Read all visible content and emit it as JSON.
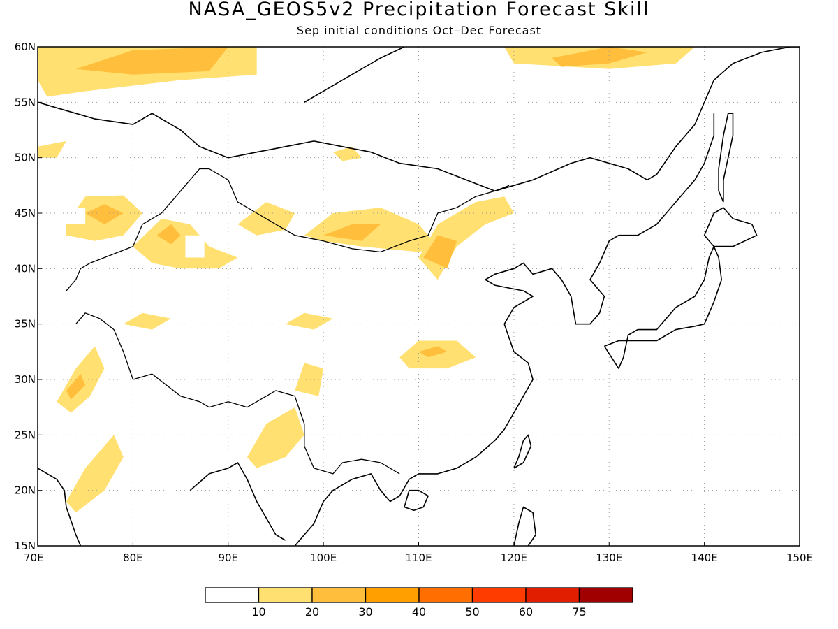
{
  "title": "NASA_GEOS5v2 Precipitation Forecast Skill",
  "subtitle": "Sep initial conditions  Oct–Dec Forecast",
  "map": {
    "lon_range": [
      70,
      150
    ],
    "lat_range": [
      15,
      60
    ],
    "lat_ticks": [
      {
        "value": 60,
        "label": "60N"
      },
      {
        "value": 55,
        "label": "55N"
      },
      {
        "value": 50,
        "label": "50N"
      },
      {
        "value": 45,
        "label": "45N"
      },
      {
        "value": 40,
        "label": "40N"
      },
      {
        "value": 35,
        "label": "35N"
      },
      {
        "value": 30,
        "label": "30N"
      },
      {
        "value": 25,
        "label": "25N"
      },
      {
        "value": 20,
        "label": "20N"
      },
      {
        "value": 15,
        "label": "15N"
      }
    ],
    "lon_ticks": [
      {
        "value": 70,
        "label": "70E"
      },
      {
        "value": 80,
        "label": "80E"
      },
      {
        "value": 90,
        "label": "90E"
      },
      {
        "value": 100,
        "label": "100E"
      },
      {
        "value": 110,
        "label": "110E"
      },
      {
        "value": 120,
        "label": "120E"
      },
      {
        "value": 130,
        "label": "130E"
      },
      {
        "value": 140,
        "label": "140E"
      },
      {
        "value": 150,
        "label": "150E"
      }
    ],
    "grid": "dotted",
    "coastline_color": "#000000"
  },
  "colorbar": {
    "colors": [
      "#ffffff",
      "#ffe070",
      "#ffbe3c",
      "#ffa000",
      "#ff6e00",
      "#ff3c00",
      "#e11e00",
      "#a00000"
    ],
    "tick_labels": [
      "10",
      "20",
      "30",
      "40",
      "50",
      "60",
      "75"
    ]
  },
  "skill_regions": [
    {
      "name": "siberia-west",
      "level": 1,
      "pts": [
        [
          70,
          60
        ],
        [
          93,
          60
        ],
        [
          93,
          57.5
        ],
        [
          85,
          57
        ],
        [
          75,
          56
        ],
        [
          71,
          55.5
        ],
        [
          70,
          57
        ]
      ]
    },
    {
      "name": "siberia-west-core",
      "level": 2,
      "pts": [
        [
          74,
          58
        ],
        [
          80,
          59.7
        ],
        [
          90,
          60
        ],
        [
          88,
          57.8
        ],
        [
          80,
          57.5
        ]
      ]
    },
    {
      "name": "east-siberia",
      "level": 1,
      "pts": [
        [
          119,
          60
        ],
        [
          139,
          60
        ],
        [
          137,
          58.5
        ],
        [
          130,
          58
        ],
        [
          120,
          58.5
        ]
      ]
    },
    {
      "name": "east-siberia-core",
      "level": 2,
      "pts": [
        [
          124,
          59
        ],
        [
          130,
          60
        ],
        [
          134,
          59.5
        ],
        [
          130,
          58.5
        ],
        [
          125,
          58.2
        ]
      ]
    },
    {
      "name": "kazakh-north",
      "level": 1,
      "pts": [
        [
          70,
          51
        ],
        [
          73,
          51.5
        ],
        [
          72,
          50
        ],
        [
          70,
          50
        ]
      ]
    },
    {
      "name": "kazakh-central",
      "level": 1,
      "pts": [
        [
          73,
          44
        ],
        [
          75,
          46.5
        ],
        [
          79,
          46.6
        ],
        [
          81,
          45
        ],
        [
          79,
          43
        ],
        [
          76,
          42.5
        ],
        [
          73,
          43
        ]
      ]
    },
    {
      "name": "kazakh-central-core",
      "level": 2,
      "pts": [
        [
          75,
          45
        ],
        [
          77,
          45.8
        ],
        [
          79,
          45
        ],
        [
          77,
          44
        ]
      ]
    },
    {
      "name": "tianshan",
      "level": 1,
      "pts": [
        [
          80,
          42
        ],
        [
          83,
          44.5
        ],
        [
          86,
          44
        ],
        [
          88,
          42
        ],
        [
          91,
          41
        ],
        [
          89,
          40
        ],
        [
          85,
          40
        ],
        [
          82,
          40.5
        ]
      ]
    },
    {
      "name": "tianshan-core",
      "level": 2,
      "pts": [
        [
          82.5,
          43
        ],
        [
          84,
          44
        ],
        [
          85,
          43
        ],
        [
          84,
          42.2
        ]
      ]
    },
    {
      "name": "west-india",
      "level": 1,
      "pts": [
        [
          72,
          28
        ],
        [
          74,
          31
        ],
        [
          76,
          33
        ],
        [
          77,
          31
        ],
        [
          75.5,
          28.5
        ],
        [
          73.5,
          27
        ]
      ]
    },
    {
      "name": "west-india-core",
      "level": 2,
      "pts": [
        [
          73,
          29
        ],
        [
          74.5,
          30.5
        ],
        [
          75,
          29.5
        ],
        [
          73.5,
          28.2
        ]
      ]
    },
    {
      "name": "central-india",
      "level": 1,
      "pts": [
        [
          73,
          19
        ],
        [
          75,
          22
        ],
        [
          78,
          25
        ],
        [
          79,
          23
        ],
        [
          77,
          20
        ],
        [
          74,
          18
        ]
      ]
    },
    {
      "name": "bengal",
      "level": 1,
      "pts": [
        [
          92,
          23
        ],
        [
          94,
          26
        ],
        [
          97,
          27.5
        ],
        [
          98,
          25
        ],
        [
          96,
          23
        ],
        [
          93,
          22
        ]
      ]
    },
    {
      "name": "mongolia-west",
      "level": 1,
      "pts": [
        [
          91,
          44
        ],
        [
          94,
          46
        ],
        [
          97,
          45
        ],
        [
          96,
          43.5
        ],
        [
          93,
          43
        ]
      ]
    },
    {
      "name": "mongolia-central",
      "level": 1,
      "pts": [
        [
          98,
          43
        ],
        [
          101,
          45
        ],
        [
          106,
          45.5
        ],
        [
          110,
          44
        ],
        [
          112,
          42
        ],
        [
          110,
          41.5
        ],
        [
          104,
          42
        ],
        [
          100,
          42.5
        ]
      ]
    },
    {
      "name": "mongolia-central-core",
      "level": 2,
      "pts": [
        [
          100,
          43
        ],
        [
          103,
          44
        ],
        [
          106,
          44
        ],
        [
          104,
          42.5
        ]
      ]
    },
    {
      "name": "inner-mongolia",
      "level": 1,
      "pts": [
        [
          110,
          41
        ],
        [
          112,
          44
        ],
        [
          116,
          46
        ],
        [
          119,
          46.5
        ],
        [
          120,
          45
        ],
        [
          117,
          44
        ],
        [
          114,
          42
        ],
        [
          112,
          39
        ]
      ]
    },
    {
      "name": "inner-mongolia-core",
      "level": 2,
      "pts": [
        [
          110.5,
          41
        ],
        [
          112,
          43
        ],
        [
          114,
          42.5
        ],
        [
          113,
          40
        ]
      ]
    },
    {
      "name": "north-mongolia",
      "level": 1,
      "pts": [
        [
          101,
          50.5
        ],
        [
          103,
          51
        ],
        [
          104,
          50
        ],
        [
          102,
          49.7
        ]
      ]
    },
    {
      "name": "sichuan",
      "level": 1,
      "pts": [
        [
          108,
          32
        ],
        [
          110,
          33.5
        ],
        [
          114,
          33.5
        ],
        [
          116,
          32
        ],
        [
          113,
          31
        ],
        [
          109,
          31
        ]
      ]
    },
    {
      "name": "sichuan-core",
      "level": 2,
      "pts": [
        [
          110,
          32.5
        ],
        [
          112,
          33
        ],
        [
          113,
          32.5
        ],
        [
          111,
          32
        ]
      ]
    },
    {
      "name": "tibet-east",
      "level": 1,
      "pts": [
        [
          97,
          29
        ],
        [
          98,
          31.5
        ],
        [
          100,
          31
        ],
        [
          99.5,
          28.5
        ]
      ]
    },
    {
      "name": "qinghai",
      "level": 1,
      "pts": [
        [
          96,
          35
        ],
        [
          98,
          36
        ],
        [
          101,
          35.5
        ],
        [
          99,
          34.5
        ]
      ]
    },
    {
      "name": "west-tibet",
      "level": 1,
      "pts": [
        [
          79,
          35
        ],
        [
          81,
          36
        ],
        [
          84,
          35.5
        ],
        [
          82,
          34.5
        ]
      ]
    }
  ],
  "masked_regions": [
    {
      "name": "white-box-1",
      "lon": [
        73,
        75
      ],
      "lat": [
        44,
        45.5
      ]
    },
    {
      "name": "white-box-2",
      "lon": [
        85.5,
        87.5
      ],
      "lat": [
        41,
        43
      ]
    }
  ],
  "coastlines": [
    [
      [
        70,
        55
      ],
      [
        72,
        54.5
      ],
      [
        74,
        54
      ],
      [
        76,
        53.5
      ],
      [
        80,
        53
      ],
      [
        82,
        54
      ],
      [
        85,
        52.5
      ],
      [
        87,
        51
      ],
      [
        90,
        50
      ],
      [
        93,
        50.5
      ],
      [
        96,
        51
      ],
      [
        99,
        51.5
      ],
      [
        102,
        51
      ],
      [
        105,
        50.5
      ],
      [
        108,
        49.5
      ],
      [
        112,
        49
      ],
      [
        115,
        48
      ],
      [
        118,
        47
      ],
      [
        120,
        47.5
      ],
      [
        122,
        48
      ],
      [
        126,
        49.5
      ],
      [
        128,
        50
      ],
      [
        132,
        49
      ],
      [
        134,
        48
      ],
      [
        135,
        48.5
      ],
      [
        137,
        51
      ],
      [
        139,
        53
      ],
      [
        140,
        55
      ],
      [
        141,
        57
      ],
      [
        143,
        58.5
      ],
      [
        146,
        59.5
      ],
      [
        149,
        60
      ],
      [
        150,
        60
      ]
    ],
    [
      [
        70,
        22
      ],
      [
        72,
        21
      ],
      [
        72.8,
        20
      ],
      [
        73,
        18.5
      ],
      [
        74,
        16
      ],
      [
        74.5,
        15
      ]
    ],
    [
      [
        86,
        20
      ],
      [
        88,
        21.5
      ],
      [
        90,
        22
      ],
      [
        91,
        22.5
      ],
      [
        92,
        21
      ],
      [
        93,
        19
      ],
      [
        94,
        17.5
      ],
      [
        95,
        16
      ],
      [
        96,
        15.5
      ]
    ],
    [
      [
        97,
        15
      ],
      [
        98,
        16
      ],
      [
        99,
        17
      ],
      [
        100,
        19
      ],
      [
        101,
        20
      ],
      [
        103,
        21
      ],
      [
        105,
        21.5
      ],
      [
        106,
        20
      ],
      [
        107,
        19
      ],
      [
        108,
        19.5
      ],
      [
        109,
        21
      ],
      [
        110,
        21.5
      ],
      [
        112,
        21.5
      ],
      [
        114,
        22
      ],
      [
        116,
        23
      ],
      [
        118,
        24.5
      ],
      [
        119,
        25.5
      ],
      [
        120,
        27
      ],
      [
        121,
        28.5
      ],
      [
        122,
        30
      ],
      [
        121.5,
        31.5
      ],
      [
        120,
        32.5
      ],
      [
        119,
        35
      ],
      [
        120,
        36.5
      ],
      [
        122,
        37.5
      ],
      [
        121,
        38
      ],
      [
        118,
        38.5
      ],
      [
        117,
        39
      ],
      [
        118,
        39.5
      ],
      [
        120,
        40
      ],
      [
        121,
        40.5
      ],
      [
        122,
        39.5
      ],
      [
        124,
        40
      ],
      [
        125,
        39
      ],
      [
        126,
        37.5
      ],
      [
        126.5,
        35
      ],
      [
        128,
        35
      ],
      [
        129,
        36
      ],
      [
        129.5,
        37.5
      ],
      [
        128,
        39
      ],
      [
        129,
        40.5
      ],
      [
        130,
        42.5
      ],
      [
        131,
        43
      ],
      [
        133,
        43
      ],
      [
        135,
        44
      ],
      [
        137,
        46
      ],
      [
        139,
        48
      ],
      [
        140,
        49.5
      ],
      [
        141,
        52
      ],
      [
        141,
        54
      ]
    ],
    [
      [
        129.5,
        33
      ],
      [
        131,
        31
      ],
      [
        131.5,
        32
      ],
      [
        132,
        34
      ],
      [
        133,
        34.5
      ],
      [
        135,
        34.5
      ],
      [
        136,
        35.5
      ],
      [
        137,
        36.5
      ],
      [
        139,
        37.5
      ],
      [
        140,
        39
      ],
      [
        140.5,
        41
      ],
      [
        141,
        42
      ],
      [
        141.5,
        41
      ],
      [
        141.8,
        39
      ],
      [
        141,
        37
      ],
      [
        140,
        35
      ],
      [
        139,
        34.8
      ],
      [
        137,
        34.5
      ],
      [
        135,
        33.5
      ],
      [
        133,
        33.5
      ],
      [
        131,
        33.5
      ],
      [
        129.5,
        33
      ]
    ],
    [
      [
        141,
        42
      ],
      [
        140,
        43
      ],
      [
        141,
        45
      ],
      [
        142,
        45.5
      ],
      [
        143,
        44.5
      ],
      [
        145,
        44
      ],
      [
        145.5,
        43
      ],
      [
        143,
        42
      ],
      [
        141,
        42
      ]
    ],
    [
      [
        142,
        46
      ],
      [
        142,
        48
      ],
      [
        142.5,
        50
      ],
      [
        143,
        52
      ],
      [
        143,
        54
      ],
      [
        142.5,
        54
      ],
      [
        142,
        52
      ],
      [
        141.5,
        49
      ],
      [
        141.5,
        47
      ],
      [
        142,
        46
      ]
    ],
    [
      [
        120,
        22
      ],
      [
        120.5,
        23
      ],
      [
        121,
        24.5
      ],
      [
        121.5,
        25
      ],
      [
        121.8,
        24
      ],
      [
        121,
        22.5
      ],
      [
        120,
        22
      ]
    ],
    [
      [
        108.5,
        18.5
      ],
      [
        109,
        20
      ],
      [
        110,
        20
      ],
      [
        111,
        19.5
      ],
      [
        110.5,
        18.5
      ],
      [
        109.5,
        18.2
      ],
      [
        108.5,
        18.5
      ]
    ],
    [
      [
        120,
        15
      ],
      [
        120.5,
        17
      ],
      [
        121,
        18.5
      ],
      [
        122,
        18
      ],
      [
        122.3,
        16
      ],
      [
        121.5,
        15
      ]
    ],
    [
      [
        98,
        55
      ],
      [
        102,
        57
      ],
      [
        106,
        59
      ],
      [
        108.5,
        60
      ]
    ]
  ],
  "borders": [
    [
      [
        80,
        30
      ],
      [
        82,
        30.5
      ],
      [
        85,
        28.5
      ],
      [
        87,
        28
      ],
      [
        88,
        27.5
      ],
      [
        90,
        28
      ],
      [
        92,
        27.5
      ],
      [
        95,
        29
      ],
      [
        97,
        28.5
      ]
    ],
    [
      [
        74,
        35
      ],
      [
        75,
        36
      ],
      [
        76.5,
        35.5
      ],
      [
        78,
        34.5
      ],
      [
        79,
        32.5
      ],
      [
        80,
        30
      ]
    ],
    [
      [
        88,
        49
      ],
      [
        90,
        48
      ],
      [
        91,
        46
      ],
      [
        93,
        45
      ],
      [
        95,
        44
      ],
      [
        97,
        43
      ],
      [
        100,
        42.5
      ],
      [
        103,
        41.8
      ],
      [
        106,
        41.5
      ],
      [
        109,
        42.5
      ],
      [
        111,
        43
      ],
      [
        112,
        45
      ],
      [
        114,
        45.5
      ],
      [
        116,
        46.5
      ],
      [
        118,
        47
      ],
      [
        119.5,
        47.5
      ]
    ],
    [
      [
        80,
        42
      ],
      [
        81,
        44
      ],
      [
        83,
        45
      ],
      [
        85,
        47
      ],
      [
        87,
        49
      ],
      [
        88,
        49
      ]
    ],
    [
      [
        97,
        28.5
      ],
      [
        98,
        26
      ],
      [
        98,
        24
      ],
      [
        99,
        22
      ],
      [
        101,
        21.5
      ],
      [
        102,
        22.5
      ],
      [
        104,
        22.8
      ],
      [
        106,
        22.5
      ],
      [
        108,
        21.5
      ]
    ],
    [
      [
        73,
        38
      ],
      [
        74,
        39
      ],
      [
        74.5,
        40
      ],
      [
        75.5,
        40.5
      ],
      [
        77,
        41
      ],
      [
        80,
        42
      ]
    ]
  ]
}
